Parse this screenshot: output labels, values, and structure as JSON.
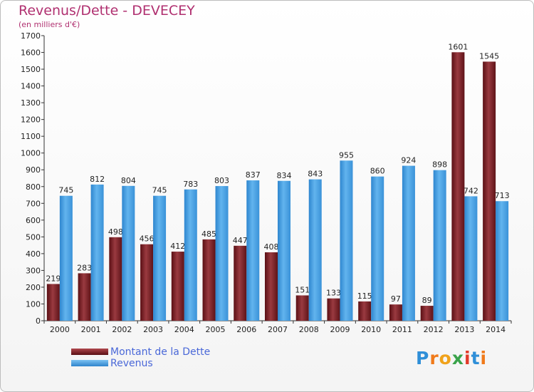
{
  "chart_data": {
    "type": "bar",
    "title": "Revenus/Dette - DEVECEY",
    "subtitle": "(en milliers d'€)",
    "categories": [
      "2000",
      "2001",
      "2002",
      "2003",
      "2004",
      "2005",
      "2006",
      "2007",
      "2008",
      "2009",
      "2010",
      "2011",
      "2012",
      "2013",
      "2014"
    ],
    "series": [
      {
        "name": "Montant de la Dette",
        "color": "#7a1f24",
        "values": [
          219,
          283,
          498,
          456,
          412,
          485,
          447,
          408,
          151,
          133,
          115,
          97,
          89,
          1601,
          1545
        ]
      },
      {
        "name": "Revenus",
        "color": "#4aa3e6",
        "values": [
          745,
          812,
          804,
          745,
          783,
          803,
          837,
          834,
          843,
          955,
          860,
          924,
          898,
          742,
          713
        ]
      }
    ],
    "ylim": [
      0,
      1700
    ],
    "yticks": [
      0,
      100,
      200,
      300,
      400,
      500,
      600,
      700,
      800,
      900,
      1000,
      1100,
      1200,
      1300,
      1400,
      1500,
      1600,
      1700
    ],
    "grid": false,
    "legend": "bottom-left"
  },
  "logo": {
    "letters": [
      "P",
      "r",
      "o",
      "x",
      "i",
      "t",
      "i"
    ],
    "colors": [
      "#2f8fd8",
      "#f07a1a",
      "#f0a21a",
      "#3aa34a",
      "#e23a2a",
      "#2f8fd8",
      "#f07a1a"
    ]
  }
}
